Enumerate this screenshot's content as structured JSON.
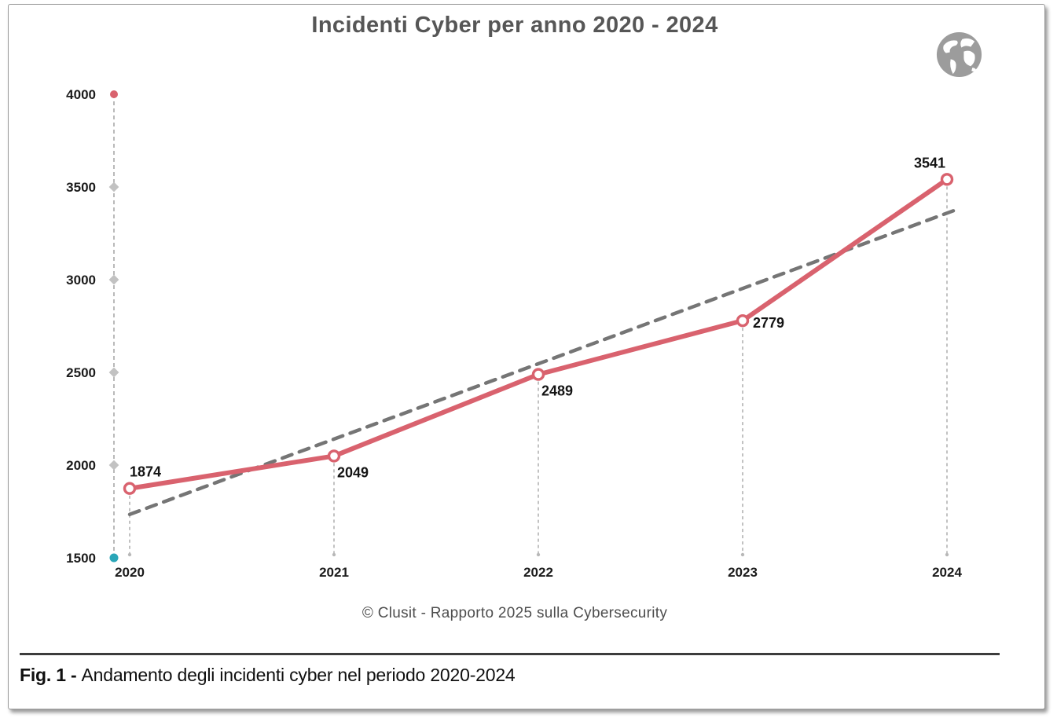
{
  "page": {
    "title": "Incidenti Cyber per anno 2020 - 2024",
    "source_note": "© Clusit - Rapporto 2025 sulla Cybersecurity",
    "figure_caption_prefix": "Fig. 1 -",
    "figure_caption_text": "Andamento degli incidenti cyber nel periodo 2020-2024"
  },
  "icons": {
    "top_right": "globe-icon"
  },
  "colors": {
    "series_red": "#d9626e",
    "trend_gray": "#757575",
    "axis_gray": "#a8a8a8",
    "dropline_gray": "#a0a0a0",
    "tick_top_red": "#d9626e",
    "tick_bottom_teal": "#2aa6b8",
    "tick_diamond_gray": "#c2c2c2",
    "title_gray": "#565656",
    "label_black": "#141414",
    "globe_gray": "#9c9c9c"
  },
  "chart_data": {
    "type": "line",
    "title": "Incidenti Cyber per anno 2020 - 2024",
    "categories": [
      "2020",
      "2021",
      "2022",
      "2023",
      "2024"
    ],
    "series": [
      {
        "name": "Incidenti cyber",
        "values": [
          1874,
          2049,
          2489,
          2779,
          3541
        ],
        "color": "#d9626e"
      }
    ],
    "data_labels": [
      "1874",
      "2049",
      "2489",
      "2779",
      "3541"
    ],
    "label_positions": [
      "above-right",
      "below-right",
      "below-right",
      "right",
      "above-left"
    ],
    "trendline": {
      "style": "dashed",
      "color": "#757575",
      "start_value": 1734,
      "end_value": 3359
    },
    "ylim": [
      1500,
      4000
    ],
    "yticks": [
      1500,
      2000,
      2500,
      3000,
      3500,
      4000
    ],
    "xlabel": "",
    "ylabel": "",
    "grid": false,
    "legend": false
  }
}
